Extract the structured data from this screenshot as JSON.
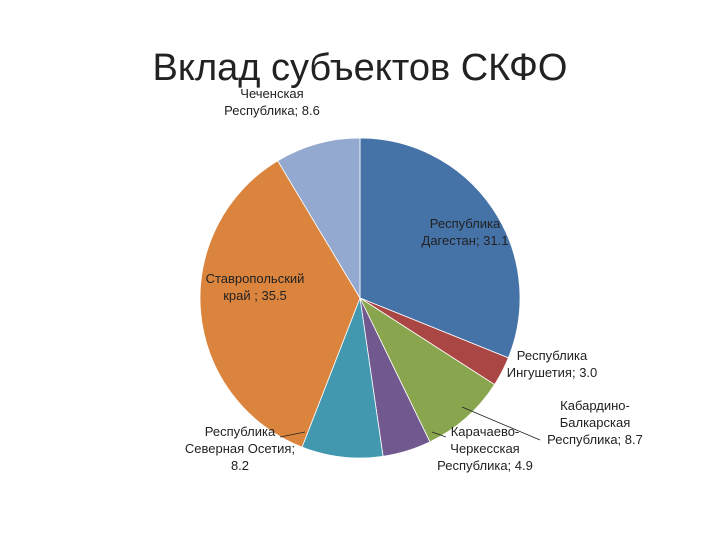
{
  "chart_data": {
    "type": "pie",
    "title": "Вклад субъектов СКФО",
    "values": [
      31.1,
      3.0,
      8.7,
      4.9,
      8.2,
      35.5,
      8.6
    ],
    "value_labels": [
      "Республика Дагестан; 31.1",
      "Республика Ингушетия; 3.0",
      "Кабардино-Балкарская Республика; 8.7",
      "Карачаево-Черкесская Республика; 4.9",
      "Республика Северная Осетия; 8.2",
      "Ставропольский край ; 35.5",
      "Чеченская Республика; 8.6"
    ],
    "colors": [
      "#4572a7",
      "#aa4643",
      "#89a54e",
      "#71588f",
      "#4198af",
      "#db843d",
      "#93a9cf"
    ]
  }
}
